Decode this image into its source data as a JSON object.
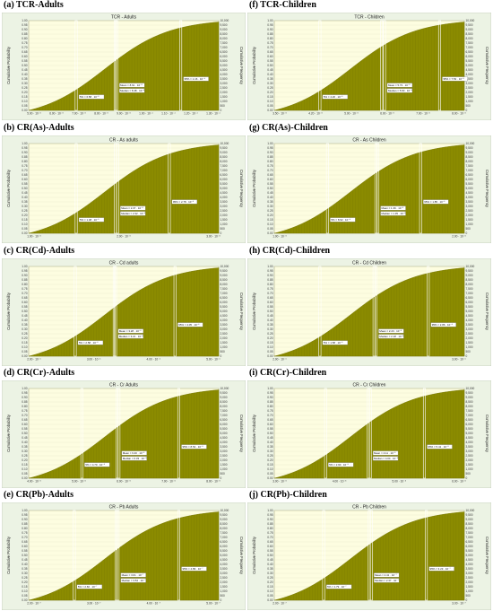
{
  "chart_data": [
    {
      "type": "area",
      "panel_label": "(a) TCR-Adults",
      "title": "TCR - Adults",
      "ylabel_left": "Cumulative Probability",
      "ylabel_right": "Cumulative Frequency",
      "left_ticks": [
        "0.00",
        "0.05",
        "0.10",
        "0.15",
        "0.20",
        "0.25",
        "0.30",
        "0.35",
        "0.40",
        "0.45",
        "0.50",
        "0.55",
        "0.60",
        "0.65",
        "0.70",
        "0.75",
        "0.80",
        "0.85",
        "0.90",
        "0.95",
        "1.00"
      ],
      "right_ticks": [
        "0",
        "500",
        "1,000",
        "1,500",
        "2,000",
        "2,500",
        "3,000",
        "3,500",
        "4,000",
        "4,500",
        "5,000",
        "5,500",
        "6,000",
        "6,500",
        "7,000",
        "7,500",
        "8,000",
        "8,500",
        "9,000",
        "9,500",
        "10,000"
      ],
      "x_ticks": [
        "5.00 · 10⁻⁵",
        "6.00 · 10⁻⁵",
        "7.00 · 10⁻⁵",
        "8.00 · 10⁻⁵",
        "9.00 · 10⁻⁵",
        "1.00 · 10⁻⁴",
        "1.10 · 10⁻⁴",
        "1.20 · 10⁻⁴",
        "1.30 · 10⁻⁴"
      ],
      "markers": {
        "p5": 0.25,
        "mean": 0.463,
        "median": 0.455,
        "p95": 0.8
      },
      "annotations": {
        "p5": "5% = 6.58 · 10⁻⁵",
        "mean": "Mean = 8.61 · 10⁻⁵",
        "median": "Median = 8.48 · 10⁻⁵",
        "p95": "95% = 1.16 · 10⁻⁴"
      }
    },
    {
      "type": "area",
      "panel_label": "(f) TCR-Children",
      "title": "TCR - Children",
      "ylabel_left": "Cumulative Probability",
      "ylabel_right": "Cumulative Frequency",
      "left_ticks": [
        "0.00",
        "0.05",
        "0.10",
        "0.15",
        "0.20",
        "0.25",
        "0.30",
        "0.35",
        "0.40",
        "0.45",
        "0.50",
        "0.55",
        "0.60",
        "0.65",
        "0.70",
        "0.75",
        "0.80",
        "0.85",
        "0.90",
        "0.95",
        "1.00"
      ],
      "right_ticks": [
        "0",
        "500",
        "1,000",
        "1,500",
        "2,000",
        "2,500",
        "3,000",
        "3,500",
        "4,000",
        "4,500",
        "5,000",
        "5,500",
        "6,000",
        "6,500",
        "7,000",
        "7,500",
        "8,000",
        "8,500",
        "9,000",
        "9,500",
        "10,000"
      ],
      "x_ticks": [
        "3.50 · 10⁻⁵",
        "4.20 · 10⁻⁵",
        "5.00 · 10⁻⁵",
        "6.00 · 10⁻⁵",
        "7.00 · 10⁻⁵",
        "8.00 · 10⁻⁵"
      ],
      "markers": {
        "p5": 0.24,
        "mean": 0.58,
        "median": 0.565,
        "p95": 0.87
      },
      "annotations": {
        "p5": "5% = 4.26 · 10⁻⁵",
        "mean": "Mean = 5.73 · 10⁻⁵",
        "median": "Median = 5.60 · 10⁻⁵",
        "p95": "95% = 7.53 · 10⁻⁵"
      }
    },
    {
      "type": "area",
      "panel_label": "(b) CR(As)-Adults",
      "title": "CR - As adults",
      "ylabel_left": "Cumulative Probability",
      "ylabel_right": "Cumulative Frequency",
      "left_ticks": [
        "0.00",
        "0.05",
        "0.10",
        "0.15",
        "0.20",
        "0.25",
        "0.30",
        "0.35",
        "0.40",
        "0.45",
        "0.50",
        "0.55",
        "0.60",
        "0.65",
        "0.70",
        "0.75",
        "0.80",
        "0.85",
        "0.90",
        "0.95",
        "1.00"
      ],
      "right_ticks": [
        "0",
        "500",
        "1,000",
        "1,500",
        "2,000",
        "2,500",
        "3,000",
        "3,500",
        "4,000",
        "4,500",
        "5,000",
        "5,500",
        "6,000",
        "6,500",
        "7,000",
        "7,500",
        "8,000",
        "8,500",
        "9,000",
        "9,500",
        "10,000"
      ],
      "x_ticks": [
        "1.00 · 10⁻⁵",
        "2.00 · 10⁻⁵",
        "3.00 · 10⁻⁵"
      ],
      "markers": {
        "p5": 0.25,
        "mean": 0.468,
        "median": 0.456,
        "p95": 0.74
      },
      "annotations": {
        "p5": "5% = 1.48 · 10⁻⁵",
        "mean": "Mean = 2.37 · 10⁻⁵",
        "median": "Median = 2.32 · 10⁻⁵",
        "p95": "95% = 2.78 · 10⁻⁵"
      }
    },
    {
      "type": "area",
      "panel_label": "(g) CR(As)-Children",
      "title": "CR - As Children",
      "ylabel_left": "Cumulative Probability",
      "ylabel_right": "Cumulative Frequency",
      "left_ticks": [
        "0.00",
        "0.05",
        "0.10",
        "0.15",
        "0.20",
        "0.25",
        "0.30",
        "0.35",
        "0.40",
        "0.45",
        "0.50",
        "0.55",
        "0.60",
        "0.65",
        "0.70",
        "0.75",
        "0.80",
        "0.85",
        "0.90",
        "0.95",
        "1.00"
      ],
      "right_ticks": [
        "0",
        "500",
        "1,000",
        "1,500",
        "2,000",
        "2,500",
        "3,000",
        "3,500",
        "4,000",
        "4,500",
        "5,000",
        "5,500",
        "6,000",
        "6,500",
        "7,000",
        "7,500",
        "8,000",
        "8,500",
        "9,000",
        "9,500",
        "10,000"
      ],
      "x_ticks": [
        "1.00 · 10⁻⁵",
        "2.00 · 10⁻⁵"
      ],
      "markers": {
        "p5": 0.28,
        "mean": 0.545,
        "median": 0.535,
        "p95": 0.77
      },
      "annotations": {
        "p5": "5% = 8.92 · 10⁻⁶",
        "mean": "Mean = 1.36 · 10⁻⁵",
        "median": "Median = 1.35 · 10⁻⁵",
        "p95": "95% = 1.85 · 10⁻⁵"
      }
    },
    {
      "type": "area",
      "panel_label": "(c) CR(Cd)-Adults",
      "title": "CR - Cd adults",
      "ylabel_left": "Cumulative Probability",
      "ylabel_right": "Cumulative Frequency",
      "left_ticks": [
        "0.00",
        "0.05",
        "0.10",
        "0.15",
        "0.20",
        "0.25",
        "0.30",
        "0.35",
        "0.40",
        "0.45",
        "0.50",
        "0.55",
        "0.60",
        "0.65",
        "0.70",
        "0.75",
        "0.80",
        "0.85",
        "0.90",
        "0.95",
        "1.00"
      ],
      "right_ticks": [
        "0",
        "500",
        "1,000",
        "1,500",
        "2,000",
        "2,500",
        "3,000",
        "3,500",
        "4,000",
        "4,500",
        "5,000",
        "5,500",
        "6,000",
        "6,500",
        "7,000",
        "7,500",
        "8,000",
        "8,500",
        "9,000",
        "9,500",
        "10,000"
      ],
      "x_ticks": [
        "2.00 · 10⁻⁶",
        "3.00 · 10⁻⁶",
        "4.00 · 10⁻⁶",
        "5.00 · 10⁻⁶"
      ],
      "markers": {
        "p5": 0.245,
        "mean": 0.457,
        "median": 0.45,
        "p95": 0.77
      },
      "annotations": {
        "p5": "5% = 2.58 · 10⁻⁶",
        "mean": "Mean = 3.28 · 10⁻⁶",
        "median": "Median = 3.21 · 10⁻⁶",
        "p95": "95% = 4.05 · 10⁻⁶"
      }
    },
    {
      "type": "area",
      "panel_label": "(h) CR(Cd)-Children",
      "title": "CR - Cd Children",
      "ylabel_left": "Cumulative Probability",
      "ylabel_right": "Cumulative Frequency",
      "left_ticks": [
        "0.00",
        "0.05",
        "0.10",
        "0.15",
        "0.20",
        "0.25",
        "0.30",
        "0.35",
        "0.40",
        "0.45",
        "0.50",
        "0.55",
        "0.60",
        "0.65",
        "0.70",
        "0.75",
        "0.80",
        "0.85",
        "0.90",
        "0.95",
        "1.00"
      ],
      "right_ticks": [
        "0",
        "500",
        "1,000",
        "1,500",
        "2,000",
        "2,500",
        "3,000",
        "3,500",
        "4,000",
        "4,500",
        "5,000",
        "5,500",
        "6,000",
        "6,500",
        "7,000",
        "7,500",
        "8,000",
        "8,500",
        "9,000",
        "9,500",
        "10,000"
      ],
      "x_ticks": [
        "2.00 · 10⁻⁶",
        "3.00 · 10⁻⁶"
      ],
      "markers": {
        "p5": 0.24,
        "mean": 0.535,
        "median": 0.525,
        "p95": 0.81
      },
      "annotations": {
        "p5": "5% = 1.58 · 10⁻⁶",
        "mean": "Mean = 2.23 · 10⁻⁶",
        "median": "Median = 2.18 · 10⁻⁶",
        "p95": "95% = 2.86 · 10⁻⁶"
      }
    },
    {
      "type": "area",
      "panel_label": "(d) CR(Cr)-Adults",
      "title": "CR - Cr Adults",
      "ylabel_left": "Cumulative Probability",
      "ylabel_right": "Cumulative Frequency",
      "left_ticks": [
        "0.00",
        "0.05",
        "0.10",
        "0.15",
        "0.20",
        "0.25",
        "0.30",
        "0.35",
        "0.40",
        "0.45",
        "0.50",
        "0.55",
        "0.60",
        "0.65",
        "0.70",
        "0.75",
        "0.80",
        "0.85",
        "0.90",
        "0.95",
        "1.00"
      ],
      "right_ticks": [
        "0",
        "500",
        "1,000",
        "1,500",
        "2,000",
        "2,500",
        "3,000",
        "3,500",
        "4,000",
        "4,500",
        "5,000",
        "5,500",
        "6,000",
        "6,500",
        "7,000",
        "7,500",
        "8,000",
        "8,500",
        "9,000",
        "9,500",
        "10,000"
      ],
      "x_ticks": [
        "4.00 · 10⁻⁵",
        "5.00 · 10⁻⁵",
        "6.00 · 10⁻⁵",
        "7.00 · 10⁻⁵",
        "8.00 · 10⁻⁵"
      ],
      "markers": {
        "p5": 0.28,
        "mean": 0.475,
        "median": 0.465,
        "p95": 0.79
      },
      "annotations": {
        "p5": "5% = 4.70 · 10⁻⁵",
        "mean": "Mean = 6.40 · 10⁻⁵",
        "median": "Median = 6.33 · 10⁻⁵",
        "p95": "95% = 8.54 · 10⁻⁵"
      }
    },
    {
      "type": "area",
      "panel_label": "(i) CR(Cr)-Children",
      "title": "CR - Cr Children",
      "ylabel_left": "Cumulative Probability",
      "ylabel_right": "Cumulative Frequency",
      "left_ticks": [
        "0.00",
        "0.05",
        "0.10",
        "0.15",
        "0.20",
        "0.25",
        "0.30",
        "0.35",
        "0.40",
        "0.45",
        "0.50",
        "0.55",
        "0.60",
        "0.65",
        "0.70",
        "0.75",
        "0.80",
        "0.85",
        "0.90",
        "0.95",
        "1.00"
      ],
      "right_ticks": [
        "0",
        "500",
        "1,000",
        "1,500",
        "2,000",
        "2,500",
        "3,000",
        "3,500",
        "4,000",
        "4,500",
        "5,000",
        "5,500",
        "6,000",
        "6,500",
        "7,000",
        "7,500",
        "8,000",
        "8,500",
        "9,000",
        "9,500",
        "10,000"
      ],
      "x_ticks": [
        "3.00 · 10⁻⁵",
        "4.00 · 10⁻⁵",
        "5.00 · 10⁻⁵",
        "6.00 · 10⁻⁵"
      ],
      "markers": {
        "p5": 0.27,
        "mean": 0.505,
        "median": 0.495,
        "p95": 0.79
      },
      "annotations": {
        "p5": "5% = 2.90 · 10⁻⁵",
        "mean": "Mean = 4.11 · 10⁻⁵",
        "median": "Median = 4.04 · 10⁻⁵",
        "p95": "95% = 5.41 · 10⁻⁵"
      }
    },
    {
      "type": "area",
      "panel_label": "(e) CR(Pb)-Adults",
      "title": "CR - Pb Adults",
      "ylabel_left": "Cumulative Probability",
      "ylabel_right": "Cumulative Frequency",
      "left_ticks": [
        "0.00",
        "0.05",
        "0.10",
        "0.15",
        "0.20",
        "0.25",
        "0.30",
        "0.35",
        "0.40",
        "0.45",
        "0.50",
        "0.55",
        "0.60",
        "0.65",
        "0.70",
        "0.75",
        "0.80",
        "0.85",
        "0.90",
        "0.95",
        "1.00"
      ],
      "right_ticks": [
        "0",
        "500",
        "1,000",
        "1,500",
        "2,000",
        "2,500",
        "3,000",
        "3,500",
        "4,000",
        "4,500",
        "5,000",
        "5,500",
        "6,000",
        "6,500",
        "7,000",
        "7,500",
        "8,000",
        "8,500",
        "9,000",
        "9,500",
        "10,000"
      ],
      "x_ticks": [
        "2.00 · 10⁻⁷",
        "3.00 · 10⁻⁷",
        "4.00 · 10⁻⁷",
        "5.00 · 10⁻⁷"
      ],
      "markers": {
        "p5": 0.24,
        "mean": 0.47,
        "median": 0.46,
        "p95": 0.79
      },
      "annotations": {
        "p5": "5% = 2.60 · 10⁻⁷",
        "mean": "Mean = 3.61 · 10⁻⁷",
        "median": "Median = 3.54 · 10⁻⁷",
        "p95": "95% = 4.89 · 10⁻⁷"
      }
    },
    {
      "type": "area",
      "panel_label": "(j) CR(Pb)-Children",
      "title": "CR - Pb Children",
      "ylabel_left": "Cumulative Probability",
      "ylabel_right": "Cumulative Frequency",
      "left_ticks": [
        "0.00",
        "0.05",
        "0.10",
        "0.15",
        "0.20",
        "0.25",
        "0.30",
        "0.35",
        "0.40",
        "0.45",
        "0.50",
        "0.55",
        "0.60",
        "0.65",
        "0.70",
        "0.75",
        "0.80",
        "0.85",
        "0.90",
        "0.95",
        "1.00"
      ],
      "right_ticks": [
        "0",
        "500",
        "1,000",
        "1,500",
        "2,000",
        "2,500",
        "3,000",
        "3,500",
        "4,000",
        "4,500",
        "5,000",
        "5,500",
        "6,000",
        "6,500",
        "7,000",
        "7,500",
        "8,000",
        "8,500",
        "9,000",
        "9,500",
        "10,000"
      ],
      "x_ticks": [
        "2.00 · 10⁻⁷",
        "3.00 · 10⁻⁷"
      ],
      "markers": {
        "p5": 0.26,
        "mean": 0.51,
        "median": 0.5,
        "p95": 0.8
      },
      "annotations": {
        "p5": "5% = 1.79 · 10⁻⁷",
        "mean": "Mean = 2.41 · 10⁻⁷",
        "median": "Median = 2.37 · 10⁻⁷",
        "p95": "95% = 3.23 · 10⁻⁷"
      }
    }
  ],
  "colors": {
    "fill": "#8b8b00",
    "bar_line": "#6e6e00",
    "plot_bg": "#fdfde0",
    "outer_bg": "#ecf3e4",
    "marker": "#ffffff"
  }
}
